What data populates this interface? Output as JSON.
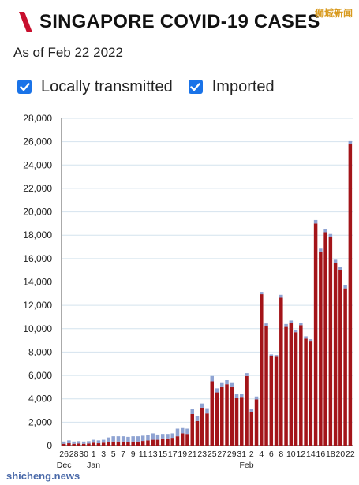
{
  "header": {
    "title": "SINGAPORE COVID-19 CASES",
    "subtitle": "As of Feb 22 2022",
    "watermark_top": "狮城新闻",
    "watermark_bottom": "shicheng.news",
    "logo_color": "#c8102e"
  },
  "legend": {
    "items": [
      {
        "label": "Locally transmitted",
        "checked": true,
        "color": "#a31419"
      },
      {
        "label": "Imported",
        "checked": true,
        "color": "#8fa3d2"
      }
    ],
    "checkbox_color": "#1a73e8"
  },
  "chart_data": {
    "type": "bar",
    "stacked": true,
    "ylim": [
      0,
      28000
    ],
    "yticks": [
      0,
      2000,
      4000,
      6000,
      8000,
      10000,
      12000,
      14000,
      16000,
      18000,
      20000,
      22000,
      24000,
      26000,
      28000
    ],
    "ytick_labels": [
      "0",
      "2,000",
      "4,000",
      "6,000",
      "8,000",
      "10,000",
      "12,000",
      "14,000",
      "16,000",
      "18,000",
      "20,000",
      "22,000",
      "24,000",
      "26,000",
      "28,000"
    ],
    "grid": true,
    "categories": [
      "Dec 26",
      "Dec 27",
      "Dec 28",
      "Dec 29",
      "Dec 30",
      "Dec 31",
      "Jan 1",
      "Jan 2",
      "Jan 3",
      "Jan 4",
      "Jan 5",
      "Jan 6",
      "Jan 7",
      "Jan 8",
      "Jan 9",
      "Jan 10",
      "Jan 11",
      "Jan 12",
      "Jan 13",
      "Jan 14",
      "Jan 15",
      "Jan 16",
      "Jan 17",
      "Jan 18",
      "Jan 19",
      "Jan 20",
      "Jan 21",
      "Jan 22",
      "Jan 23",
      "Jan 24",
      "Jan 25",
      "Jan 26",
      "Jan 27",
      "Jan 28",
      "Jan 29",
      "Jan 30",
      "Jan 31",
      "Feb 1",
      "Feb 2",
      "Feb 3",
      "Feb 4",
      "Feb 5",
      "Feb 6",
      "Feb 7",
      "Feb 8",
      "Feb 9",
      "Feb 10",
      "Feb 11",
      "Feb 12",
      "Feb 13",
      "Feb 14",
      "Feb 15",
      "Feb 16",
      "Feb 17",
      "Feb 18",
      "Feb 19",
      "Feb 20",
      "Feb 21",
      "Feb 22"
    ],
    "xtick_labels": [
      "26",
      "",
      "28",
      "",
      "30",
      "",
      "1",
      "",
      "3",
      "",
      "5",
      "",
      "7",
      "",
      "9",
      "",
      "11",
      "",
      "13",
      "",
      "15",
      "",
      "17",
      "",
      "19",
      "",
      "21",
      "",
      "23",
      "",
      "25",
      "",
      "27",
      "",
      "29",
      "",
      "31",
      "",
      "2",
      "",
      "4",
      "",
      "6",
      "",
      "8",
      "",
      "10",
      "",
      "12",
      "",
      "14",
      "",
      "16",
      "",
      "18",
      "",
      "20",
      "",
      "22"
    ],
    "month_labels": [
      {
        "label": "Dec",
        "index": 0
      },
      {
        "label": "Jan",
        "index": 6
      },
      {
        "label": "Feb",
        "index": 37
      }
    ],
    "series": [
      {
        "name": "Locally transmitted",
        "color": "#a31419",
        "values": [
          150,
          200,
          150,
          180,
          150,
          180,
          250,
          200,
          250,
          300,
          350,
          350,
          350,
          300,
          350,
          350,
          400,
          450,
          500,
          500,
          550,
          550,
          600,
          800,
          1050,
          1000,
          2700,
          2100,
          3250,
          2750,
          5500,
          4550,
          5000,
          5250,
          5000,
          4050,
          4100,
          5950,
          2850,
          3950,
          12950,
          10200,
          7650,
          7600,
          12650,
          10150,
          10500,
          9700,
          10300,
          9150,
          8900,
          19000,
          16600,
          18250,
          17850,
          15650,
          15050,
          13450,
          25800
        ]
      },
      {
        "name": "Imported",
        "color": "#8fa3d2",
        "values": [
          200,
          250,
          200,
          200,
          200,
          200,
          250,
          250,
          250,
          400,
          450,
          450,
          450,
          450,
          450,
          450,
          450,
          450,
          550,
          450,
          450,
          450,
          450,
          650,
          450,
          450,
          450,
          450,
          350,
          450,
          450,
          350,
          350,
          350,
          350,
          350,
          350,
          250,
          250,
          250,
          200,
          250,
          150,
          150,
          250,
          250,
          200,
          200,
          200,
          200,
          200,
          300,
          250,
          300,
          250,
          250,
          250,
          250,
          250
        ]
      }
    ]
  }
}
